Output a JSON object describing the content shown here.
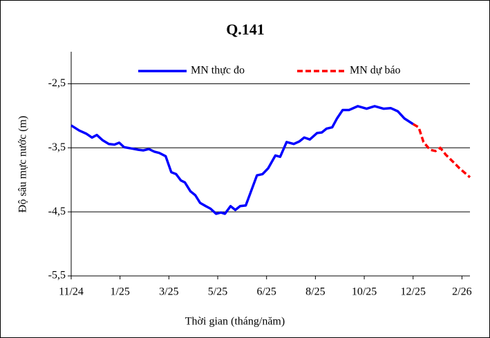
{
  "chart_data": {
    "type": "line",
    "title": "Q.141",
    "xlabel": "Thời gian (tháng/năm)",
    "ylabel": "Độ sâu mực nước (m)",
    "xlim": [
      0,
      498
    ],
    "xticks": [
      {
        "value": 0,
        "label": "11/24"
      },
      {
        "value": 61,
        "label": "1/25"
      },
      {
        "value": 122,
        "label": "3/25"
      },
      {
        "value": 183,
        "label": "5/25"
      },
      {
        "value": 244,
        "label": "6/25"
      },
      {
        "value": 305,
        "label": "8/25"
      },
      {
        "value": 366,
        "label": "10/25"
      },
      {
        "value": 427,
        "label": "12/25"
      },
      {
        "value": 488,
        "label": "2/26"
      }
    ],
    "ylim": [
      -5.5,
      -2.0
    ],
    "yticks": [
      {
        "value": -5.5,
        "label": "-5,5"
      },
      {
        "value": -4.5,
        "label": "-4,5"
      },
      {
        "value": -3.5,
        "label": "-3,5"
      },
      {
        "value": -2.5,
        "label": "-2,5"
      }
    ],
    "grid": true,
    "legend": "top",
    "series": [
      {
        "name": "MN thực đo",
        "color": "#0000ff",
        "dash": false,
        "x": [
          0,
          10,
          19,
          26,
          32,
          39,
          47,
          54,
          60,
          66,
          75,
          84,
          90,
          97,
          104,
          110,
          118,
          125,
          131,
          137,
          142,
          149,
          155,
          161,
          168,
          174,
          181,
          187,
          192,
          199,
          205,
          211,
          218,
          224,
          232,
          239,
          246,
          255,
          261,
          269,
          278,
          285,
          291,
          298,
          307,
          313,
          319,
          326,
          332,
          339,
          347,
          358,
          369,
          379,
          390,
          399,
          408,
          416,
          427
        ],
        "values": [
          -3.15,
          -3.23,
          -3.28,
          -3.34,
          -3.3,
          -3.38,
          -3.44,
          -3.45,
          -3.42,
          -3.49,
          -3.51,
          -3.53,
          -3.54,
          -3.52,
          -3.56,
          -3.58,
          -3.63,
          -3.88,
          -3.91,
          -4.01,
          -4.04,
          -4.18,
          -4.24,
          -4.36,
          -4.41,
          -4.45,
          -4.53,
          -4.51,
          -4.53,
          -4.41,
          -4.47,
          -4.41,
          -4.4,
          -4.2,
          -3.93,
          -3.91,
          -3.82,
          -3.62,
          -3.64,
          -3.41,
          -3.44,
          -3.4,
          -3.34,
          -3.37,
          -3.27,
          -3.26,
          -3.2,
          -3.18,
          -3.04,
          -2.91,
          -2.91,
          -2.85,
          -2.89,
          -2.85,
          -2.89,
          -2.88,
          -2.93,
          -3.04,
          -3.13
        ]
      },
      {
        "name": "MN dự báo",
        "color": "#ff0000",
        "dash": true,
        "x": [
          427,
          434,
          440,
          448,
          455,
          461,
          468,
          477,
          485,
          498
        ],
        "values": [
          -3.13,
          -3.18,
          -3.41,
          -3.53,
          -3.55,
          -3.5,
          -3.61,
          -3.72,
          -3.82,
          -3.96
        ]
      }
    ]
  }
}
